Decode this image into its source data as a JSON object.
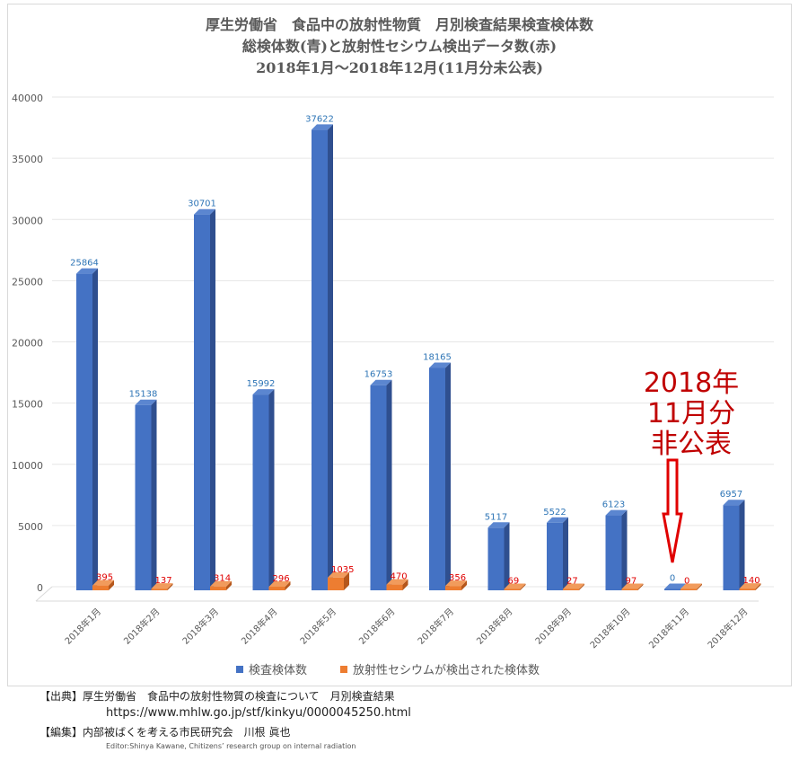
{
  "title_lines": [
    "厚生労働省　食品中の放射性物質　月別検査結果検査検体数",
    "総検体数(青)と放射性セシウム検出データ数(赤)",
    "2018年1月～2018年12月(11月分未公表)"
  ],
  "annotation": [
    "2018年",
    "11月分",
    "非公表"
  ],
  "chart_data": {
    "type": "bar",
    "title": "厚生労働省　食品中の放射性物質　月別検査結果検査検体数",
    "categories": [
      "2018年1月",
      "2018年2月",
      "2018年3月",
      "2018年4月",
      "2018年5月",
      "2018年6月",
      "2018年7月",
      "2018年8月",
      "2018年9月",
      "2018年10月",
      "2018年11月",
      "2018年12月"
    ],
    "series": [
      {
        "name": "検査検体数",
        "color": "#4472c4",
        "label_color": "#2e75b6",
        "values": [
          25864,
          15138,
          30701,
          15992,
          37622,
          16753,
          18165,
          5117,
          5522,
          6123,
          0,
          6957
        ]
      },
      {
        "name": "放射性セシウムが検出された検体数",
        "color": "#ed7d31",
        "label_color": "#e00000",
        "values": [
          395,
          137,
          314,
          296,
          1035,
          470,
          356,
          69,
          27,
          97,
          0,
          140
        ]
      }
    ],
    "yticks": [
      0,
      5000,
      10000,
      15000,
      20000,
      25000,
      30000,
      35000,
      40000
    ],
    "ylim": [
      0,
      40000
    ],
    "legend": "bottom",
    "grid": true
  },
  "footer": {
    "source_label": "【出典】",
    "source_text": "厚生労働省　食品中の放射性物質の検査について　月別検査結果",
    "url": "https://www.mhlw.go.jp/stf/kinkyu/0000045250.html",
    "editor_label": "【編集】",
    "editor_text": "内部被ばくを考える市民研究会　川根 眞也",
    "editor_en": "Editor:Shinya Kawane, Chitizens’ research group on internal radiation"
  }
}
